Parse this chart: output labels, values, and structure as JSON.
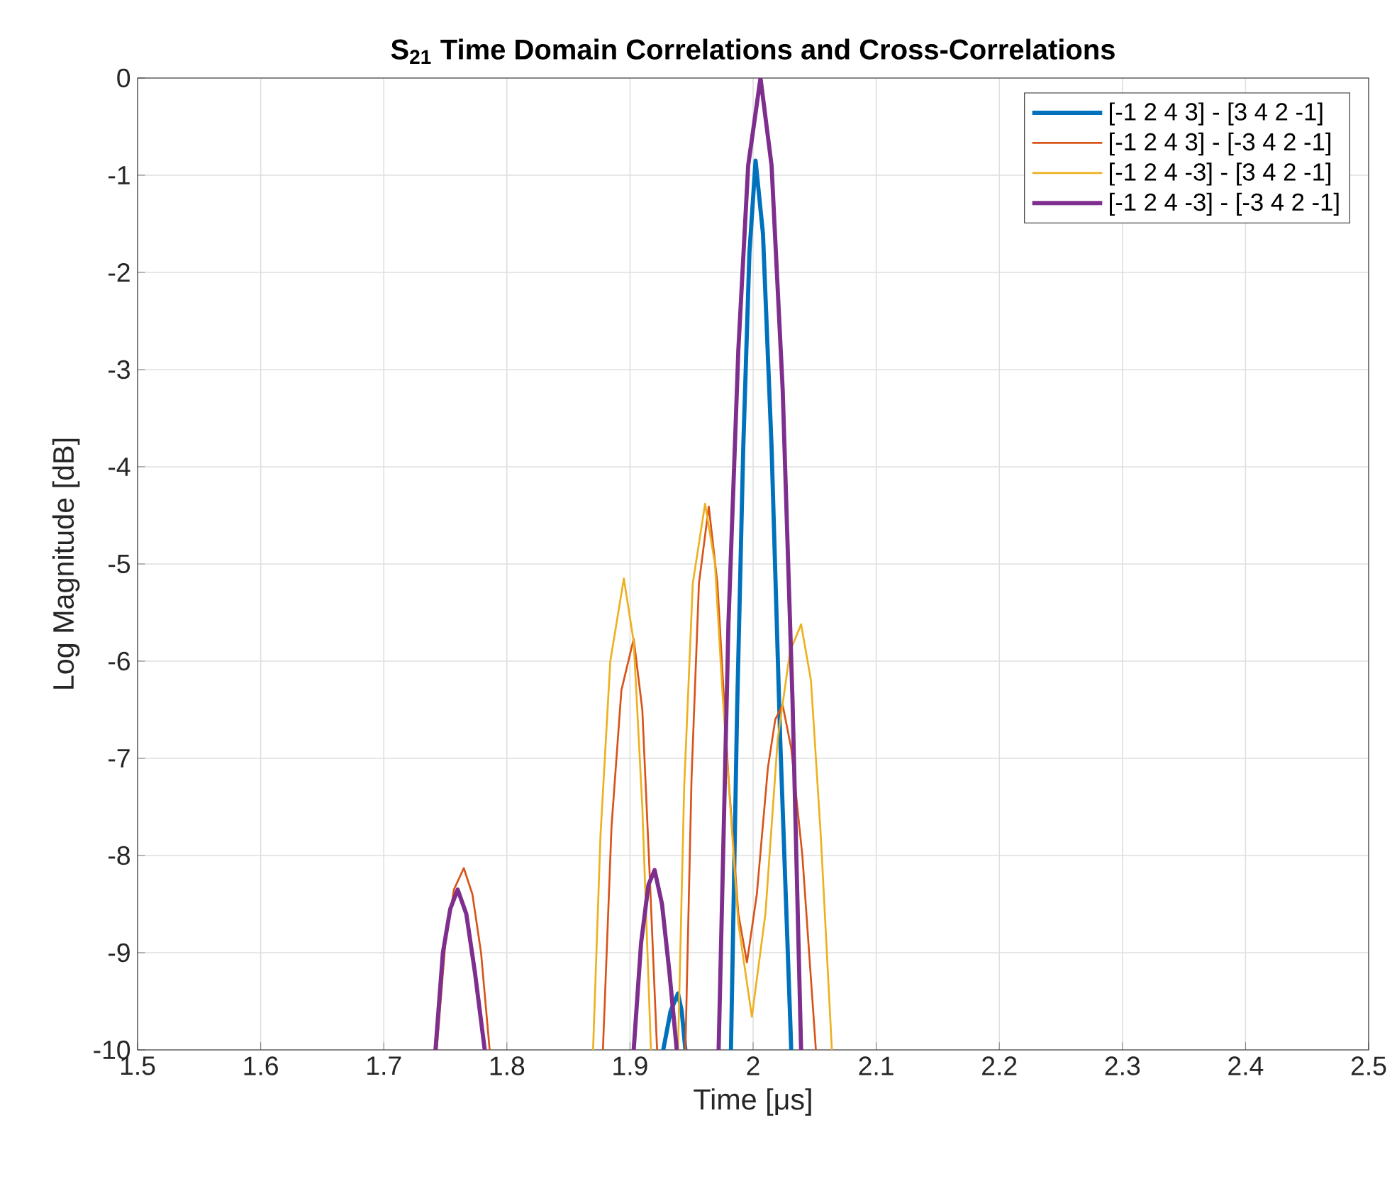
{
  "chart_data": {
    "type": "line",
    "title": "**S$_{21}$ Time Domain Correlations and Cross-Correlations**",
    "xlabel": "Time [μs]",
    "ylabel": "Log Magnitude [dB]",
    "xlim": [
      1.5,
      2.5
    ],
    "ylim": [
      -10,
      0
    ],
    "xticks": [
      1.5,
      1.6,
      1.7,
      1.8,
      1.9,
      2,
      2.1,
      2.2,
      2.3,
      2.4,
      2.5
    ],
    "yticks": [
      -10,
      -9,
      -8,
      -7,
      -6,
      -5,
      -4,
      -3,
      -2,
      -1,
      0
    ],
    "grid": true,
    "legend": "top right",
    "line_style": "solid",
    "marker": "none",
    "series": [
      {
        "name": "[-1 2 4 3] - [3 4 2 -1]",
        "color": "#0072bd",
        "x": [
          1.927,
          1.933,
          1.939,
          1.942,
          1.945,
          1.96,
          1.982,
          1.987,
          1.992,
          1.997,
          2.002,
          2.008,
          2.015,
          2.022,
          2.031
        ],
        "values": [
          -10,
          -9.6,
          -9.42,
          -9.6,
          -10,
          null,
          -10,
          -6.5,
          -3.8,
          -1.8,
          -0.85,
          -1.6,
          -3.8,
          -6.8,
          -10
        ]
      },
      {
        "name": "[-1 2 4 3] - [-3 4 2 -1]",
        "color": "#d95319",
        "x": [
          1.743,
          1.75,
          1.757,
          1.765,
          1.772,
          1.779,
          1.786,
          1.83,
          1.878,
          1.885,
          1.893,
          1.903,
          1.91,
          1.916,
          1.922,
          1.935,
          1.945,
          1.95,
          1.956,
          1.964,
          1.971,
          1.98,
          1.988,
          1.995,
          2.003,
          2.012,
          2.018,
          2.024,
          2.031,
          2.04,
          2.051
        ],
        "values": [
          -10,
          -8.9,
          -8.35,
          -8.13,
          -8.4,
          -9.0,
          -10,
          null,
          -10,
          -7.7,
          -6.3,
          -5.77,
          -6.5,
          -8.2,
          -10,
          null,
          -10,
          -7.2,
          -5.2,
          -4.41,
          -5.2,
          -7.2,
          -8.6,
          -9.1,
          -8.4,
          -7.1,
          -6.6,
          -6.45,
          -6.9,
          -8.0,
          -10
        ]
      },
      {
        "name": "[-1 2 4 -3] - [3 4 2 -1]",
        "color": "#edb120",
        "x": [
          1.87,
          1.876,
          1.884,
          1.895,
          1.903,
          1.91,
          1.917,
          1.928,
          1.939,
          1.944,
          1.951,
          1.961,
          1.969,
          1.975,
          1.988,
          1.999,
          2.01,
          2.02,
          2.03,
          2.039,
          2.047,
          2.055,
          2.064
        ],
        "values": [
          -10,
          -7.8,
          -6.0,
          -5.15,
          -5.8,
          -7.5,
          -10,
          null,
          -10,
          -7.3,
          -5.2,
          -4.38,
          -5.0,
          -6.3,
          -8.7,
          -9.66,
          -8.6,
          -6.8,
          -5.9,
          -5.62,
          -6.2,
          -7.8,
          -10
        ]
      },
      {
        "name": "[-1 2 4 -3] - [-3 4 2 -1]",
        "color": "#7e2f8e",
        "x": [
          1.742,
          1.748,
          1.754,
          1.76,
          1.767,
          1.774,
          1.782,
          1.85,
          1.903,
          1.909,
          1.915,
          1.92,
          1.926,
          1.932,
          1.938,
          1.95,
          1.972,
          1.98,
          1.988,
          1.996,
          2.006,
          2.015,
          2.024,
          2.032,
          2.039
        ],
        "values": [
          -10,
          -9.0,
          -8.55,
          -8.35,
          -8.6,
          -9.2,
          -10,
          null,
          -10,
          -8.9,
          -8.3,
          -8.15,
          -8.5,
          -9.2,
          -10,
          null,
          -10,
          -5.6,
          -2.8,
          -0.9,
          0,
          -0.9,
          -3.2,
          -6.4,
          -10
        ]
      }
    ]
  }
}
